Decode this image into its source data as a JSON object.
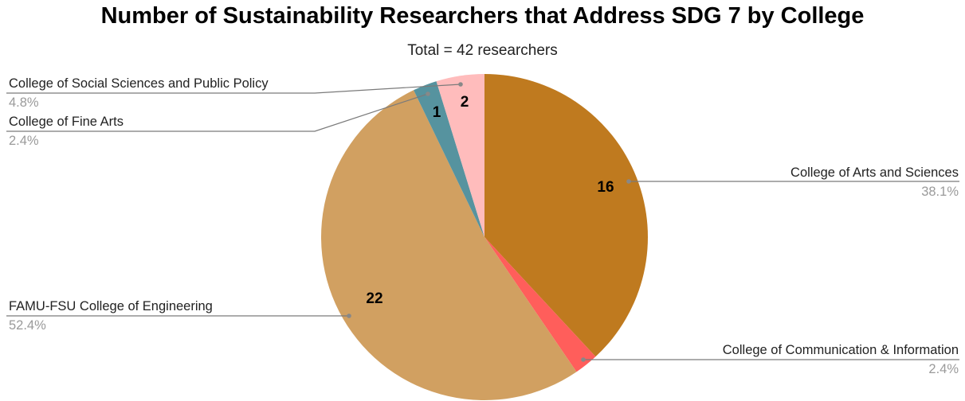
{
  "chart_data": {
    "type": "pie",
    "title": "Number of Sustainability Researchers that Address SDG 7 by College",
    "subtitle": "Total = 42 researchers",
    "total": 42,
    "slices": [
      {
        "label": "College of Arts and Sciences",
        "value": 16,
        "percent": "38.1%",
        "color": "#bf7a1f"
      },
      {
        "label": "College of Communication & Information",
        "value": 1,
        "percent": "2.4%",
        "color": "#ff5e5b"
      },
      {
        "label": "FAMU-FSU College of Engineering",
        "value": 22,
        "percent": "52.4%",
        "color": "#d1a061"
      },
      {
        "label": "College of Fine Arts",
        "value": 1,
        "percent": "2.4%",
        "color": "#56939f"
      },
      {
        "label": "College of Social Sciences and Public Policy",
        "value": 2,
        "percent": "4.8%",
        "color": "#ffbcbc"
      }
    ],
    "data_labels": [
      "16",
      "",
      "22",
      "1",
      "2"
    ],
    "legend_placement": "none (leader-line labels)"
  }
}
